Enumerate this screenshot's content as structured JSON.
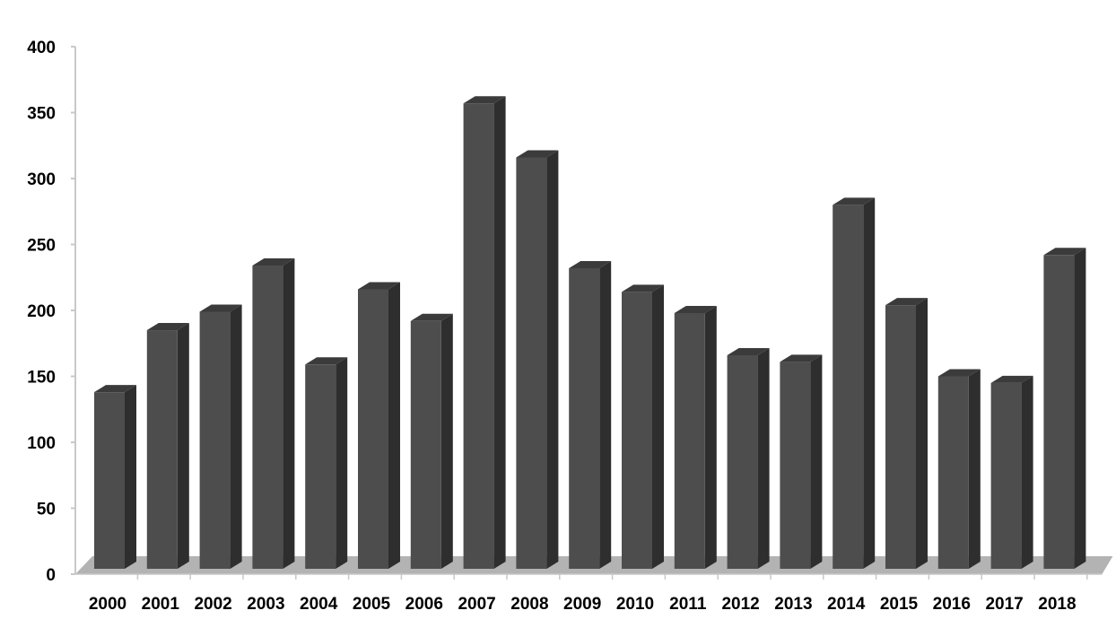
{
  "chart_data": {
    "type": "bar",
    "categories": [
      "2000",
      "2001",
      "2002",
      "2003",
      "2004",
      "2005",
      "2006",
      "2007",
      "2008",
      "2009",
      "2010",
      "2011",
      "2012",
      "2013",
      "2014",
      "2015",
      "2016",
      "2017",
      "2018"
    ],
    "values": [
      138,
      185,
      199,
      234,
      159,
      216,
      192,
      357,
      316,
      232,
      214,
      198,
      166,
      161,
      280,
      204,
      150,
      145,
      242
    ],
    "title": "",
    "xlabel": "",
    "ylabel": "",
    "ylim": [
      0,
      400
    ],
    "yticks": [
      "0",
      "50",
      "100",
      "150",
      "200",
      "250",
      "300",
      "350",
      "400"
    ],
    "grid": false,
    "legend": "none",
    "colors": {
      "bar_front": "#4d4d4d",
      "bar_side": "#2e2e2e",
      "bar_top": "#3b3b3b",
      "floor": "#b3b3b3",
      "axis": "#c8c8c8"
    }
  }
}
